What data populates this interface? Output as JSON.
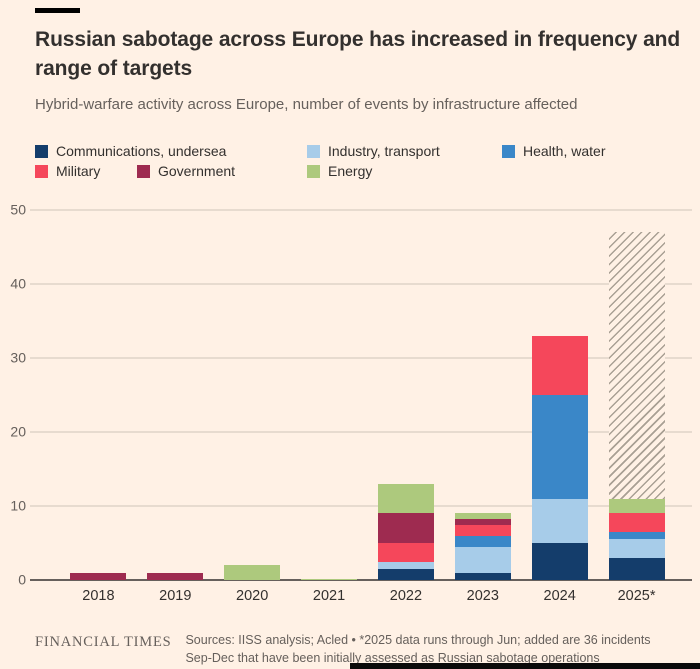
{
  "header": {
    "title": "Russian sabotage across Europe has increased in frequency and range of targets",
    "subtitle": "Hybrid-warfare activity across Europe, number of events by infrastructure affected"
  },
  "legend": {
    "items": [
      {
        "label": "Communications, undersea",
        "color": "#143D6B"
      },
      {
        "label": "Industry, transport",
        "color": "#A7CCE9"
      },
      {
        "label": "Health, water",
        "color": "#3A87C8"
      },
      {
        "label": "Military",
        "color": "#F5475B"
      },
      {
        "label": "Government",
        "color": "#9E2B50"
      },
      {
        "label": "Energy",
        "color": "#ADC97D"
      }
    ]
  },
  "chart_data": {
    "type": "bar",
    "stacked": true,
    "title": "Russian sabotage across Europe has increased in frequency and range of targets",
    "subtitle": "Hybrid-warfare activity across Europe, number of events by infrastructure affected",
    "categories": [
      "2018",
      "2019",
      "2020",
      "2021",
      "2022",
      "2023",
      "2024",
      "2025*"
    ],
    "series": [
      {
        "name": "Communications, undersea",
        "color": "#143D6B",
        "values": [
          0,
          0,
          0,
          0,
          1.5,
          1,
          5,
          3
        ]
      },
      {
        "name": "Industry, transport",
        "color": "#A7CCE9",
        "values": [
          0,
          0,
          0,
          0,
          1,
          3.5,
          6,
          2.5
        ]
      },
      {
        "name": "Health, water",
        "color": "#3A87C8",
        "values": [
          0,
          0,
          0,
          0,
          0,
          1.5,
          14,
          1
        ]
      },
      {
        "name": "Military",
        "color": "#F5475B",
        "values": [
          0,
          0,
          0,
          0,
          2.5,
          1.5,
          8,
          2.5
        ]
      },
      {
        "name": "Government",
        "color": "#9E2B50",
        "values": [
          1,
          1,
          0,
          0,
          4,
          0.8,
          0,
          0
        ]
      },
      {
        "name": "Energy",
        "color": "#ADC97D",
        "values": [
          0,
          0,
          2,
          0.2,
          4,
          0.7,
          0,
          2
        ]
      },
      {
        "name": "Initially assessed Sep-Dec incidents (hatched)",
        "pattern": "hatch",
        "values": [
          0,
          0,
          0,
          0,
          0,
          0,
          0,
          36
        ]
      }
    ],
    "totals": [
      1,
      1,
      2,
      0.2,
      13,
      9,
      33,
      47
    ],
    "ylim": [
      0,
      50
    ],
    "yticks": [
      0,
      10,
      20,
      30,
      40,
      50
    ],
    "grid": "horizontal",
    "legend_position": "top",
    "accent_background": "#FFF1E5"
  },
  "footer": {
    "brand": "FINANCIAL TIMES",
    "source_line1": "Sources: IISS analysis; Acled • *2025 data runs through Jun; added are 36 incidents",
    "source_line2": "Sep-Dec that have been initially assessed as Russian sabotage operations"
  }
}
